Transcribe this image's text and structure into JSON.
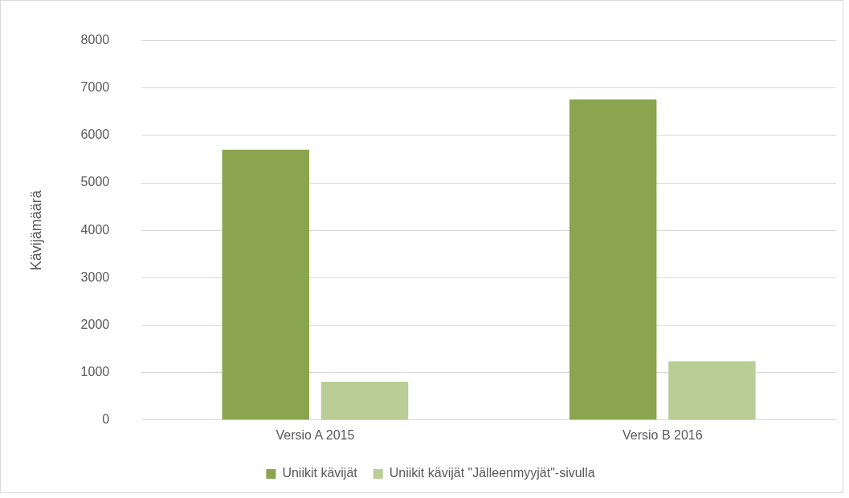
{
  "chart_data": {
    "type": "bar",
    "ylabel": "Kävijämäärä",
    "categories": [
      "Versio A 2015",
      "Versio B 2016"
    ],
    "series": [
      {
        "name": "Uniikit kävijät",
        "color": "#8aa54e",
        "values": [
          5700,
          6760
        ]
      },
      {
        "name": "Uniikit kävijät \"Jälleenmyyjät\"-sivulla",
        "color": "#b9cd96",
        "values": [
          810,
          1240
        ]
      }
    ],
    "ylim": [
      0,
      8000
    ],
    "yticks": [
      0,
      1000,
      2000,
      3000,
      4000,
      5000,
      6000,
      7000,
      8000
    ],
    "grid": "y",
    "legend": "bottom"
  }
}
